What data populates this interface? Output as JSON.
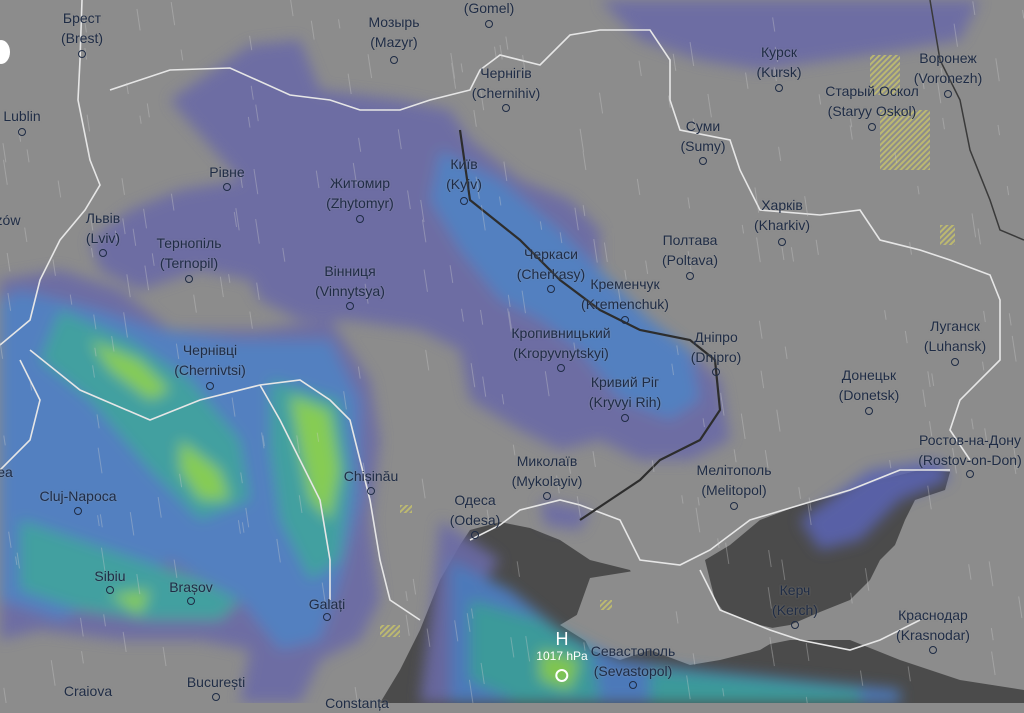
{
  "map": {
    "layer": "precipitation",
    "colors": {
      "land": "#8c8c8c",
      "sea": "#4b4b4b",
      "rain_light": "#6b6aa6",
      "rain_mid": "#4d7fc6",
      "rain_teal": "#3aa3a3",
      "rain_heavy": "#86d34f",
      "snow_hatch": "#c8c46a",
      "border": "#e6e6e6"
    },
    "cities": [
      {
        "name": "Брест",
        "alt": "(Brest)"
      },
      {
        "name": "Мозырь",
        "alt": "(Mazyr)"
      },
      {
        "name": "",
        "alt": "(Gomel)"
      },
      {
        "name": "Lublin",
        "alt": ""
      },
      {
        "name": "zów",
        "alt": ""
      },
      {
        "name": "Рівне",
        "alt": ""
      },
      {
        "name": "Житомир",
        "alt": "(Zhytomyr)"
      },
      {
        "name": "Київ",
        "alt": "(Kyiv)"
      },
      {
        "name": "Чернігів",
        "alt": "(Chernihiv)"
      },
      {
        "name": "Львів",
        "alt": "(Lviv)"
      },
      {
        "name": "Тернопіль",
        "alt": "(Ternopil)"
      },
      {
        "name": "Вінниця",
        "alt": "(Vinnytsya)"
      },
      {
        "name": "Курск",
        "alt": "(Kursk)"
      },
      {
        "name": "Старый Оскол",
        "alt": "(Staryy Oskol)"
      },
      {
        "name": "Воронеж",
        "alt": "(Voronezh)"
      },
      {
        "name": "Суми",
        "alt": "(Sumy)"
      },
      {
        "name": "Харків",
        "alt": "(Kharkiv)"
      },
      {
        "name": "Полтава",
        "alt": "(Poltava)"
      },
      {
        "name": "Черкаси",
        "alt": "(Cherkasy)"
      },
      {
        "name": "Кременчук",
        "alt": "(Kremenchuk)"
      },
      {
        "name": "Кропивницький",
        "alt": "(Kropyvnytskyi)"
      },
      {
        "name": "Дніпро",
        "alt": "(Dnipro)"
      },
      {
        "name": "Луганск",
        "alt": "(Luhansk)"
      },
      {
        "name": "Кривий Ріг",
        "alt": "(Kryvyi Rih)"
      },
      {
        "name": "Донецьк",
        "alt": "(Donetsk)"
      },
      {
        "name": "Чернівці",
        "alt": "(Chernivtsi)"
      },
      {
        "name": "Chișinău",
        "alt": ""
      },
      {
        "name": "Миколаїв",
        "alt": "(Mykolayiv)"
      },
      {
        "name": "Мелітополь",
        "alt": "(Melitopol)"
      },
      {
        "name": "Ростов-на-Дону",
        "alt": "(Rostov-on-Don)"
      },
      {
        "name": "Одеса",
        "alt": "(Odesa)"
      },
      {
        "name": "Cluj-Napoca",
        "alt": ""
      },
      {
        "name": "ea",
        "alt": ""
      },
      {
        "name": "Sibiu",
        "alt": ""
      },
      {
        "name": "Brașov",
        "alt": ""
      },
      {
        "name": "Galați",
        "alt": ""
      },
      {
        "name": "Керч",
        "alt": "(Kerch)"
      },
      {
        "name": "Краснодар",
        "alt": "(Krasnodar)"
      },
      {
        "name": "Севастополь",
        "alt": "(Sevastopol)"
      },
      {
        "name": "Craiova",
        "alt": ""
      },
      {
        "name": "București",
        "alt": ""
      },
      {
        "name": "Constanța",
        "alt": ""
      }
    ],
    "pressure_center": {
      "type": "H",
      "value": "1017 hPa"
    }
  }
}
